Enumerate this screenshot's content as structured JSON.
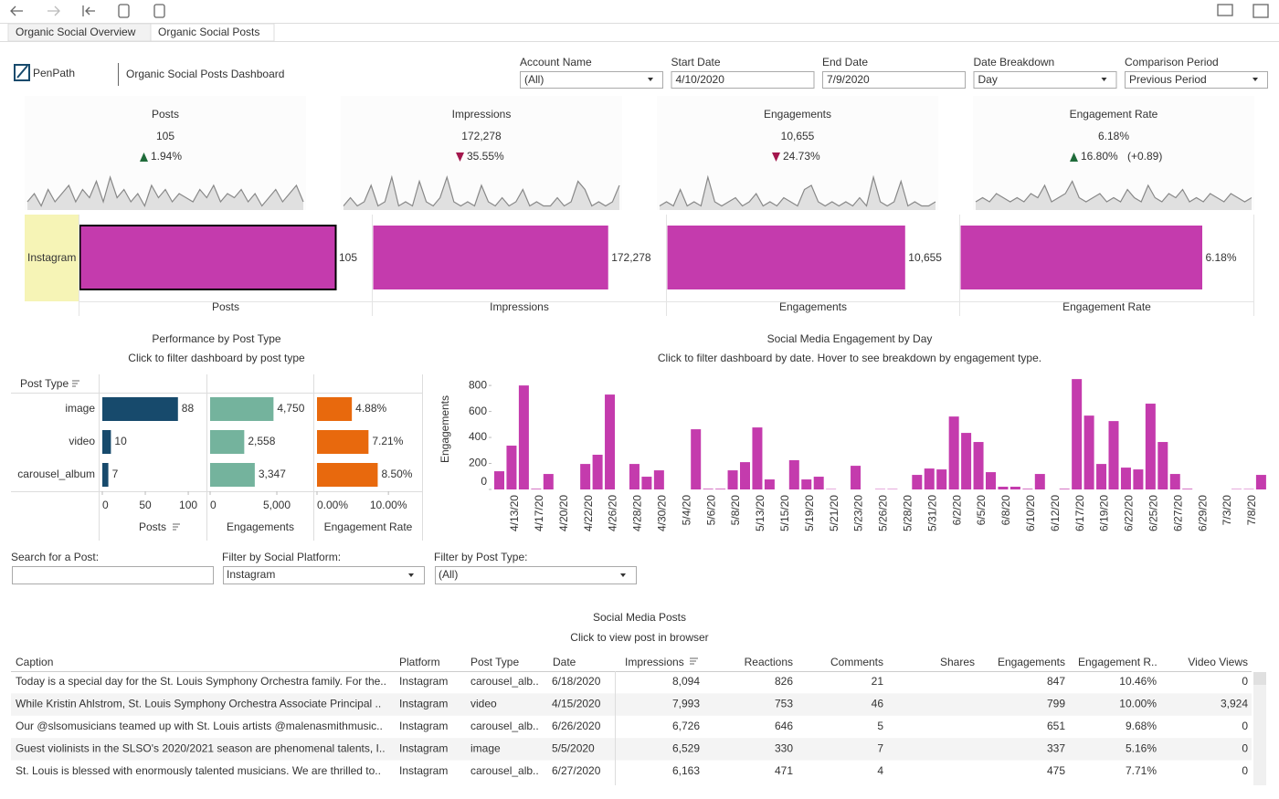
{
  "tabs": [
    "Organic Social Overview",
    "Organic Social Posts"
  ],
  "header": {
    "logo": "PenPath",
    "title": "Organic Social Posts Dashboard"
  },
  "filters": [
    {
      "label": "Account Name",
      "value": "(All)",
      "dropdown": true
    },
    {
      "label": "Start Date",
      "value": "4/10/2020",
      "dropdown": false
    },
    {
      "label": "End Date",
      "value": "7/9/2020",
      "dropdown": false
    },
    {
      "label": "Date Breakdown",
      "value": "Day",
      "dropdown": true
    },
    {
      "label": "Comparison Period",
      "value": "Previous Period",
      "dropdown": true
    }
  ],
  "kpis": [
    {
      "title": "Posts",
      "value": "105",
      "change": "1.94%",
      "direction": "up",
      "trend": [
        2,
        4,
        1,
        5,
        2,
        4,
        6,
        2,
        5,
        3,
        7,
        2,
        8,
        3,
        5,
        2,
        4,
        1,
        6,
        3,
        5,
        2,
        4,
        3,
        2,
        5,
        3,
        6,
        2,
        4,
        3,
        5,
        2,
        4,
        1,
        3,
        5,
        2,
        4,
        6,
        2
      ]
    },
    {
      "title": "Impressions",
      "value": "172,278",
      "change": "35.55%",
      "direction": "down",
      "trend": [
        1,
        3,
        1,
        2,
        6,
        1,
        2,
        8,
        1,
        2,
        1,
        7,
        2,
        1,
        3,
        8,
        2,
        1,
        2,
        1,
        6,
        2,
        1,
        3,
        1,
        2,
        5,
        1,
        2,
        1,
        1,
        3,
        1,
        2,
        7,
        5,
        1,
        2,
        1,
        2,
        6
      ]
    },
    {
      "title": "Engagements",
      "value": "10,655",
      "change": "24.73%",
      "direction": "down",
      "trend": [
        1,
        2,
        1,
        5,
        1,
        2,
        1,
        8,
        2,
        1,
        2,
        3,
        1,
        2,
        4,
        1,
        2,
        1,
        3,
        2,
        1,
        5,
        6,
        2,
        1,
        2,
        1,
        2,
        1,
        3,
        1,
        8,
        2,
        1,
        2,
        7,
        1,
        2,
        1,
        1,
        2
      ]
    },
    {
      "title": "Engagement Rate",
      "value": "6.18%",
      "change": "16.80%",
      "note": "(+0.89)",
      "direction": "up",
      "trend": [
        2,
        3,
        2,
        4,
        3,
        2,
        3,
        2,
        4,
        3,
        6,
        2,
        3,
        4,
        7,
        3,
        2,
        3,
        4,
        2,
        3,
        2,
        5,
        3,
        2,
        6,
        3,
        2,
        4,
        3,
        5,
        2,
        3,
        2,
        4,
        3,
        2,
        4,
        3,
        2,
        3
      ]
    }
  ],
  "chart_data": [
    {
      "type": "bar",
      "categories": [
        "Instagram"
      ],
      "color": "#c43bad",
      "series": [
        {
          "name": "Posts",
          "values": [
            105
          ],
          "value_labels": [
            "105"
          ],
          "xlim": [
            0,
            120
          ]
        },
        {
          "name": "Impressions",
          "values": [
            172278
          ],
          "value_labels": [
            "172,278"
          ],
          "xlim": [
            0,
            215000
          ]
        },
        {
          "name": "Engagements",
          "values": [
            10655
          ],
          "value_labels": [
            "10,655"
          ],
          "xlim": [
            0,
            13100
          ]
        },
        {
          "name": "Engagement Rate",
          "values": [
            6.18
          ],
          "value_labels": [
            "6.18%"
          ],
          "xlim": [
            0,
            7.5
          ]
        }
      ]
    },
    {
      "type": "bar",
      "title": "Performance by Post Type",
      "subtitle": "Click to filter dashboard by post type",
      "category_label": "Post Type",
      "categories": [
        "image",
        "video",
        "carousel_album"
      ],
      "series": [
        {
          "name": "Posts",
          "color": "#174a6c",
          "values": [
            88,
            10,
            7
          ],
          "xlim": [
            0,
            118
          ],
          "xticks": [
            0,
            50,
            100
          ]
        },
        {
          "name": "Engagements",
          "color": "#74b39d",
          "values": [
            4750,
            2558,
            3347
          ],
          "value_labels": [
            "4,750",
            "2,558",
            "3,347"
          ],
          "xlim": [
            0,
            7600
          ],
          "xticks": [
            0,
            {
              "value": 5000,
              "label": "5,000"
            }
          ]
        },
        {
          "name": "Engagement Rate",
          "color": "#e8690d",
          "values": [
            4.88,
            7.21,
            8.5
          ],
          "value_labels": [
            "4.88%",
            "7.21%",
            "8.50%"
          ],
          "xlim": [
            0,
            14.2
          ],
          "xticks": [
            {
              "value": 0,
              "label": "0.00%"
            },
            {
              "value": 10,
              "label": "10.00%"
            }
          ]
        }
      ]
    },
    {
      "type": "bar",
      "title": "Social Media Engagement by Day",
      "subtitle": "Click to filter dashboard by date. Hover to see breakdown by engagement type.",
      "y_label": "Engagements",
      "color": "#c43bad",
      "ylim": [
        0,
        850
      ],
      "yticks": [
        0,
        200,
        400,
        600,
        800
      ],
      "categories": [
        null,
        "4/13/20",
        null,
        "4/17/20",
        null,
        "4/20/20",
        null,
        "4/22/20",
        null,
        "4/26/20",
        null,
        "4/28/20",
        null,
        "4/30/20",
        null,
        "5/4/20",
        null,
        "5/6/20",
        null,
        "5/8/20",
        null,
        "5/13/20",
        null,
        "5/15/20",
        null,
        "5/19/20",
        null,
        "5/21/20",
        null,
        "5/23/20",
        null,
        "5/26/20",
        null,
        "5/28/20",
        null,
        "5/31/20",
        null,
        "6/2/20",
        null,
        "6/5/20",
        null,
        "6/8/20",
        null,
        "6/10/20",
        null,
        "6/12/20",
        null,
        "6/17/20",
        null,
        "6/19/20",
        null,
        "6/22/20",
        null,
        "6/25/20",
        null,
        "6/27/20",
        null,
        "6/29/20",
        null,
        "7/3/20",
        null,
        "7/8/20",
        null
      ],
      "values": [
        140,
        337,
        800,
        5,
        119,
        0,
        0,
        196,
        267,
        730,
        0,
        196,
        98,
        147,
        0,
        0,
        463,
        5,
        5,
        147,
        210,
        477,
        77,
        0,
        225,
        77,
        98,
        3,
        0,
        182,
        0,
        3,
        3,
        0,
        112,
        161,
        154,
        561,
        435,
        365,
        133,
        21,
        21,
        5,
        119,
        0,
        5,
        849,
        568,
        196,
        526,
        168,
        154,
        660,
        365,
        119,
        5,
        0,
        0,
        0,
        3,
        3,
        112
      ]
    }
  ],
  "post_filters": [
    {
      "label": "Search for a Post:"
    },
    {
      "label": "Filter by Social Platform:",
      "value": "Instagram"
    },
    {
      "label": "Filter by Post Type:",
      "value": "(All)"
    }
  ],
  "table": {
    "title": "Social Media Posts",
    "subtitle": "Click to view post in browser",
    "columns": [
      "Caption",
      "Platform",
      "Post Type",
      "Date",
      "Impressions",
      "Reactions",
      "Comments",
      "Shares",
      "Engagements",
      "Engagement R..",
      "Video Views"
    ],
    "rows": [
      [
        "Today is a special day for the St. Louis Symphony Orchestra family. For the..",
        "Instagram",
        "carousel_alb..",
        "6/18/2020",
        "8,094",
        "826",
        "21",
        "",
        "847",
        "10.46%",
        "0"
      ],
      [
        "While Kristin Ahlstrom, St. Louis Symphony Orchestra Associate Principal ..",
        "Instagram",
        "video",
        "4/15/2020",
        "7,993",
        "753",
        "46",
        "",
        "799",
        "10.00%",
        "3,924"
      ],
      [
        "Our @slsomusicians teamed up with St. Louis artists @malenasmithmusic..",
        "Instagram",
        "carousel_alb..",
        "6/26/2020",
        "6,726",
        "646",
        "5",
        "",
        "651",
        "9.68%",
        "0"
      ],
      [
        "Guest violinists in the SLSO's 2020/2021 season are phenomenal talents, I..",
        "Instagram",
        "image",
        "5/5/2020",
        "6,529",
        "330",
        "7",
        "",
        "337",
        "5.16%",
        "0"
      ],
      [
        "St. Louis is blessed with enormously talented musicians. We are thrilled to..",
        "Instagram",
        "carousel_alb..",
        "6/27/2020",
        "6,163",
        "471",
        "4",
        "",
        "475",
        "7.71%",
        "0"
      ]
    ]
  }
}
